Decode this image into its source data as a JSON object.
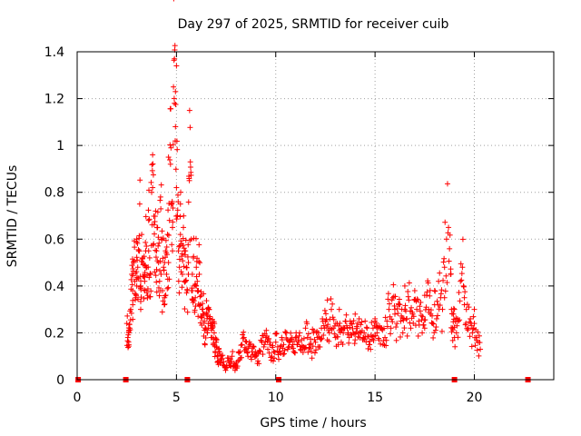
{
  "chart_data": {
    "type": "scatter",
    "title": "Day 297 of 2025, SRMTID for receiver cuib",
    "xlabel": "GPS time / hours",
    "ylabel": "SRMTID / TECUs",
    "xlim": [
      0,
      24
    ],
    "ylim": [
      0,
      1.4
    ],
    "xticks": [
      0,
      5,
      10,
      15,
      20
    ],
    "xtick_labels": [
      "0",
      "5",
      "10",
      "15",
      "20"
    ],
    "yticks": [
      0,
      0.2,
      0.4,
      0.6,
      0.8,
      1.0,
      1.2,
      1.4
    ],
    "ytick_labels": [
      "0",
      "0.2",
      "0.4",
      "0.6",
      "0.8",
      "1",
      "1.2",
      "1.4"
    ],
    "grid": true,
    "marker": "+",
    "color": "#ff0000",
    "series": [
      {
        "name": "SRMTID",
        "x": [
          2.5,
          2.55,
          2.6,
          2.65,
          2.7,
          2.75,
          2.8,
          2.85,
          2.9,
          2.95,
          3.0,
          3.05,
          3.1,
          3.15,
          3.2,
          3.25,
          3.3,
          3.35,
          3.4,
          3.45,
          3.5,
          3.55,
          3.6,
          3.65,
          3.7,
          3.75,
          3.8,
          3.85,
          3.9,
          3.95,
          4.0,
          4.05,
          4.1,
          4.15,
          4.2,
          4.25,
          4.3,
          4.35,
          4.4,
          4.45,
          4.5,
          4.55,
          4.6,
          4.65,
          4.7,
          4.75,
          4.8,
          4.85,
          4.9,
          4.95,
          5.0,
          5.05,
          5.1,
          5.15,
          5.2,
          5.25,
          5.3,
          5.35,
          5.4,
          5.45,
          5.5,
          5.55,
          5.6,
          5.65,
          5.7,
          5.75,
          5.8,
          5.85,
          5.9,
          5.95,
          6.0,
          6.05,
          6.1,
          6.15,
          6.2,
          6.25,
          6.3,
          6.35,
          6.4,
          6.45,
          6.5,
          6.55,
          6.6,
          6.65,
          6.7,
          6.75,
          6.8,
          6.85,
          6.9,
          6.95,
          7.0,
          7.05,
          7.1,
          7.15,
          7.2,
          7.3,
          7.4,
          7.5,
          7.6,
          7.7,
          7.8,
          7.9,
          8.0,
          8.1,
          8.2,
          8.3,
          8.4,
          8.5,
          8.6,
          8.7,
          8.8,
          8.9,
          9.0,
          9.1,
          9.2,
          9.3,
          9.4,
          9.5,
          9.6,
          9.7,
          9.8,
          9.9,
          10.0,
          10.1,
          10.2,
          10.3,
          10.4,
          10.5,
          10.6,
          10.7,
          10.8,
          10.9,
          11.0,
          11.1,
          11.2,
          11.3,
          11.4,
          11.5,
          11.6,
          11.7,
          11.8,
          11.9,
          12.0,
          12.1,
          12.2,
          12.3,
          12.4,
          12.5,
          12.6,
          12.7,
          12.8,
          12.9,
          13.0,
          13.1,
          13.2,
          13.3,
          13.4,
          13.5,
          13.6,
          13.7,
          13.8,
          13.9,
          14.0,
          14.1,
          14.2,
          14.3,
          14.4,
          14.5,
          14.6,
          14.7,
          14.8,
          14.9,
          15.0,
          15.1,
          15.2,
          15.3,
          15.4,
          15.5,
          15.6,
          15.7,
          15.8,
          15.9,
          16.0,
          16.1,
          16.2,
          16.3,
          16.4,
          16.5,
          16.6,
          16.7,
          16.8,
          16.9,
          17.0,
          17.1,
          17.2,
          17.3,
          17.4,
          17.5,
          17.6,
          17.7,
          17.8,
          17.9,
          18.0,
          18.1,
          18.2,
          18.3,
          18.4,
          18.5,
          18.6,
          18.7,
          18.8,
          18.85,
          18.9,
          18.95,
          19.0,
          19.1,
          19.2,
          19.3,
          19.4,
          19.5,
          19.6,
          19.7,
          19.8,
          19.9,
          20.0,
          20.1,
          20.2,
          20.3,
          2.6,
          2.8,
          3.0,
          3.2,
          3.4,
          3.6,
          3.8,
          4.0,
          4.2,
          4.4,
          4.6,
          4.8,
          4.9,
          4.95,
          5.0,
          5.2,
          5.4,
          5.6,
          5.8,
          6.0,
          6.2,
          6.4,
          6.6,
          6.8,
          7.0,
          12.6,
          13.2,
          14.0,
          15.0,
          16.0,
          16.5,
          17.0,
          17.5,
          18.0,
          18.5,
          19.0,
          19.5,
          20.0
        ],
        "y": [
          0.24,
          0.18,
          0.15,
          0.22,
          0.3,
          0.45,
          0.38,
          0.5,
          0.42,
          0.35,
          0.6,
          0.48,
          0.55,
          0.75,
          0.4,
          0.62,
          0.52,
          0.44,
          0.38,
          0.55,
          0.48,
          0.36,
          0.68,
          0.52,
          0.45,
          0.8,
          0.96,
          0.58,
          0.46,
          0.72,
          0.55,
          0.65,
          0.5,
          0.42,
          0.78,
          0.6,
          0.38,
          0.48,
          0.35,
          0.55,
          0.45,
          0.62,
          0.5,
          0.68,
          0.92,
          0.75,
          0.55,
          1.25,
          1.37,
          1.08,
          0.82,
          0.7,
          0.55,
          0.48,
          0.62,
          0.58,
          0.45,
          0.65,
          0.42,
          0.55,
          0.48,
          0.38,
          0.5,
          0.85,
          0.93,
          0.6,
          0.45,
          0.52,
          0.4,
          0.35,
          0.48,
          0.42,
          0.38,
          0.45,
          0.32,
          0.36,
          0.3,
          0.28,
          0.25,
          0.22,
          0.28,
          0.2,
          0.24,
          0.3,
          0.26,
          0.18,
          0.22,
          0.15,
          0.2,
          0.12,
          0.16,
          0.1,
          0.08,
          0.12,
          0.07,
          0.09,
          0.06,
          0.05,
          0.08,
          0.06,
          0.1,
          0.07,
          0.05,
          0.08,
          0.12,
          0.15,
          0.18,
          0.13,
          0.1,
          0.15,
          0.12,
          0.14,
          0.1,
          0.08,
          0.12,
          0.16,
          0.14,
          0.18,
          0.13,
          0.15,
          0.1,
          0.12,
          0.16,
          0.14,
          0.12,
          0.18,
          0.15,
          0.2,
          0.13,
          0.16,
          0.14,
          0.12,
          0.18,
          0.15,
          0.2,
          0.17,
          0.14,
          0.22,
          0.18,
          0.15,
          0.12,
          0.2,
          0.16,
          0.18,
          0.14,
          0.22,
          0.19,
          0.25,
          0.17,
          0.2,
          0.3,
          0.22,
          0.18,
          0.24,
          0.21,
          0.16,
          0.2,
          0.25,
          0.22,
          0.18,
          0.24,
          0.2,
          0.17,
          0.22,
          0.26,
          0.2,
          0.18,
          0.25,
          0.22,
          0.15,
          0.19,
          0.22,
          0.25,
          0.2,
          0.17,
          0.22,
          0.15,
          0.18,
          0.25,
          0.3,
          0.22,
          0.35,
          0.28,
          0.24,
          0.32,
          0.25,
          0.2,
          0.3,
          0.26,
          0.34,
          0.22,
          0.28,
          0.38,
          0.3,
          0.25,
          0.33,
          0.27,
          0.22,
          0.36,
          0.3,
          0.28,
          0.24,
          0.32,
          0.26,
          0.42,
          0.35,
          0.3,
          0.48,
          0.6,
          0.65,
          0.45,
          0.3,
          0.22,
          0.28,
          0.18,
          0.2,
          0.25,
          0.42,
          0.48,
          0.35,
          0.3,
          0.22,
          0.26,
          0.2,
          0.24,
          0.18,
          0.16,
          0.13,
          0.2,
          0.32,
          0.4,
          0.3,
          0.42,
          0.55,
          0.82,
          0.47,
          0.38,
          0.5,
          0.95,
          0.65,
          1.18,
          1.23,
          1.34,
          0.75,
          0.55,
          0.45,
          0.38,
          0.4,
          0.32,
          0.28,
          0.22,
          0.18,
          0.14,
          0.34,
          0.3,
          0.28,
          0.26,
          0.3,
          0.4,
          0.34,
          0.36,
          0.38,
          0.35,
          0.3,
          0.32,
          0.3
        ],
        "marks": [
          {
            "x": 0.05,
            "y": 0.0
          },
          {
            "x": 2.45,
            "y": 0.0
          },
          {
            "x": 5.55,
            "y": 0.0
          },
          {
            "x": 10.15,
            "y": 0.0
          },
          {
            "x": 19.0,
            "y": 0.0
          },
          {
            "x": 22.7,
            "y": 0.0
          }
        ]
      }
    ]
  }
}
